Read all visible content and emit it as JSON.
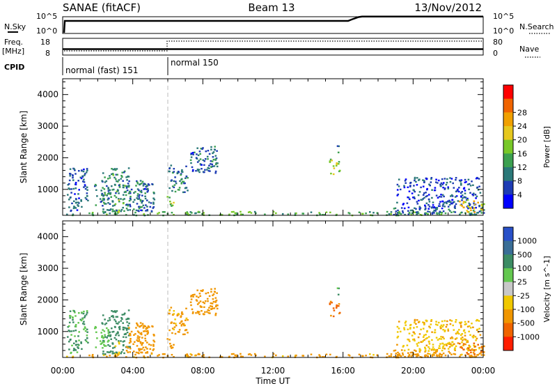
{
  "header": {
    "station": "SANAE (fitACF)",
    "beam": "Beam 13",
    "date": "13/Nov/2012"
  },
  "strip": {
    "nsky_label": "N.Sky",
    "nsky_top": "10^5",
    "nsky_bottom": "10^0",
    "nsearch_label": "N.Search",
    "nsearch_top": "10^5",
    "nsearch_bottom": "10^0",
    "freq_label": "Freq.",
    "freq_unit": "[MHz]",
    "freq_top": "18",
    "freq_bottom": "8",
    "nave_label": "Nave",
    "nave_top": "80",
    "nave_bottom": "0",
    "cpid_label": "CPID",
    "modes": [
      {
        "label": "normal (fast) 151",
        "start_hour": 0
      },
      {
        "label": "normal 150",
        "start_hour": 6
      }
    ]
  },
  "xaxis": {
    "title": "Time UT",
    "ticks": [
      "00:00",
      "04:00",
      "08:00",
      "12:00",
      "16:00",
      "20:00",
      "00:00"
    ]
  },
  "panels": {
    "power": {
      "ylabel": "Slant Range [km]",
      "yticks": [
        "1000",
        "2000",
        "3000",
        "4000"
      ],
      "colorbar_title": "Power [dB]",
      "colorbar_ticks": [
        "4",
        "8",
        "12",
        "16",
        "20",
        "24",
        "28"
      ],
      "colors": [
        "#0000ff",
        "#1e3cb4",
        "#2a7878",
        "#3ca050",
        "#78c828",
        "#e6c81e",
        "#f0a000",
        "#f06400",
        "#ff0000"
      ]
    },
    "velocity": {
      "ylabel": "Slant Range [km]",
      "yticks": [
        "1000",
        "2000",
        "3000",
        "4000"
      ],
      "colorbar_title": "Velocity [m s^-1]",
      "colorbar_ticks": [
        "1000",
        "500",
        "100",
        "25",
        "-25",
        "-100",
        "-500",
        "-1000"
      ],
      "colors": [
        "#2850c8",
        "#3a6e96",
        "#3c8c64",
        "#64c850",
        "#c8c8c8",
        "#f0c800",
        "#f09600",
        "#f06400",
        "#ff1e00"
      ]
    }
  },
  "chart_data": {
    "type": "heatmap",
    "x_unit": "hour UT",
    "xlim": [
      0,
      24
    ],
    "ylim": [
      180,
      4500
    ],
    "y_unit": "km",
    "series": [
      {
        "name": "Power [dB]",
        "cbar_range": [
          0,
          30
        ]
      },
      {
        "name": "Velocity [m s^-1]",
        "cbar_levels": [
          1000,
          500,
          100,
          25,
          -25,
          -100,
          -500,
          -1000
        ]
      }
    ],
    "echo_regions": [
      {
        "x": [
          0.0,
          24.0
        ],
        "y": [
          200,
          320
        ],
        "power": 12,
        "velocity": -150
      },
      {
        "x": [
          0.2,
          1.4
        ],
        "y": [
          300,
          1700
        ],
        "power": 6,
        "velocity": 100
      },
      {
        "x": [
          1.6,
          2.6
        ],
        "y": [
          500,
          1200
        ],
        "power": 8,
        "velocity": 50
      },
      {
        "x": [
          2.2,
          3.8
        ],
        "y": [
          300,
          1700
        ],
        "power": 10,
        "velocity": 200
      },
      {
        "x": [
          2.9,
          3.2
        ],
        "y": [
          300,
          700
        ],
        "power": 14,
        "velocity": -40
      },
      {
        "x": [
          3.6,
          4.8
        ],
        "y": [
          350,
          1300
        ],
        "power": 8,
        "velocity": -300
      },
      {
        "x": [
          4.2,
          5.2
        ],
        "y": [
          300,
          1200
        ],
        "power": 7,
        "velocity": -250
      },
      {
        "x": [
          6.0,
          7.2
        ],
        "y": [
          900,
          1800
        ],
        "power": 8,
        "velocity": -150
      },
      {
        "x": [
          5.9,
          6.3
        ],
        "y": [
          500,
          900
        ],
        "power": 14,
        "velocity": -200
      },
      {
        "x": [
          7.2,
          8.8
        ],
        "y": [
          1500,
          2350
        ],
        "power": 7,
        "velocity": -300
      },
      {
        "x": [
          8.4,
          8.8
        ],
        "y": [
          1700,
          2400
        ],
        "power": 8,
        "velocity": -250
      },
      {
        "x": [
          15.2,
          15.8
        ],
        "y": [
          1500,
          2000
        ],
        "power": 15,
        "velocity": -600
      },
      {
        "x": [
          15.6,
          15.8
        ],
        "y": [
          2100,
          2400
        ],
        "power": 9,
        "velocity": 150
      },
      {
        "x": [
          18.6,
          24.0
        ],
        "y": [
          200,
          450
        ],
        "power": 8,
        "velocity": -300
      },
      {
        "x": [
          19.0,
          23.8
        ],
        "y": [
          400,
          1400
        ],
        "power": 5,
        "velocity": -80
      },
      {
        "x": [
          22.6,
          24.0
        ],
        "y": [
          300,
          700
        ],
        "power": 18,
        "velocity": -550
      }
    ]
  }
}
